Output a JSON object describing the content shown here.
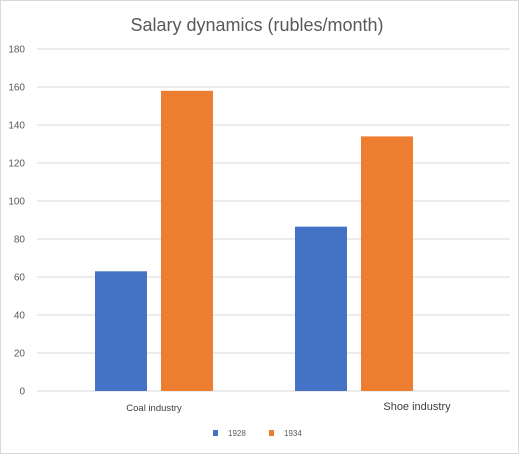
{
  "chart_data": {
    "type": "bar",
    "title": "Salary dynamics (rubles/month)",
    "categories": [
      "Coal industry",
      "Shoe industry"
    ],
    "series": [
      {
        "name": "1928",
        "values": [
          63,
          86.5
        ],
        "color": "#4472c4"
      },
      {
        "name": "1934",
        "values": [
          158,
          134
        ],
        "color": "#ed7d31"
      }
    ],
    "ylim": [
      0,
      180
    ],
    "yticks": [
      0,
      20,
      40,
      60,
      80,
      100,
      120,
      140,
      160,
      180
    ],
    "xlabel": "",
    "ylabel": "",
    "grid": true,
    "legend_position": "bottom"
  }
}
